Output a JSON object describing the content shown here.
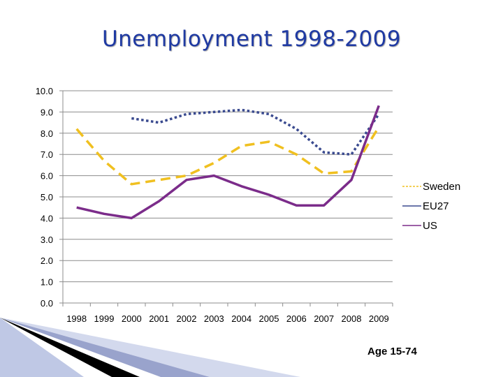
{
  "slide": {
    "title": "Unemployment 1998-2009",
    "note": "Age 15-74"
  },
  "chart_data": {
    "type": "line",
    "title": "Unemployment 1998-2009",
    "xlabel": "",
    "ylabel": "",
    "ylim": [
      0,
      10
    ],
    "yticks": [
      "0.0",
      "1.0",
      "2.0",
      "3.0",
      "4.0",
      "5.0",
      "6.0",
      "7.0",
      "8.0",
      "9.0",
      "10.0"
    ],
    "categories": [
      "1998",
      "1999",
      "2000",
      "2001",
      "2002",
      "2003",
      "2004",
      "2005",
      "2006",
      "2007",
      "2008",
      "2009"
    ],
    "grid": true,
    "legend_position": "right",
    "series": [
      {
        "name": "Sweden",
        "color": "#f0c020",
        "dash": "dashed",
        "values": [
          8.2,
          6.7,
          5.6,
          5.8,
          6.0,
          6.6,
          7.4,
          7.6,
          7.0,
          6.1,
          6.2,
          8.3
        ]
      },
      {
        "name": "EU27",
        "color": "#3a4a8f",
        "dash": "dotted",
        "values": [
          null,
          null,
          8.7,
          8.5,
          8.9,
          9.0,
          9.1,
          8.9,
          8.2,
          7.1,
          7.0,
          8.9
        ]
      },
      {
        "name": "US",
        "color": "#7b2c8a",
        "dash": "solid",
        "values": [
          4.5,
          4.2,
          4.0,
          4.8,
          5.8,
          6.0,
          5.5,
          5.1,
          4.6,
          4.6,
          5.8,
          9.3
        ]
      }
    ]
  }
}
